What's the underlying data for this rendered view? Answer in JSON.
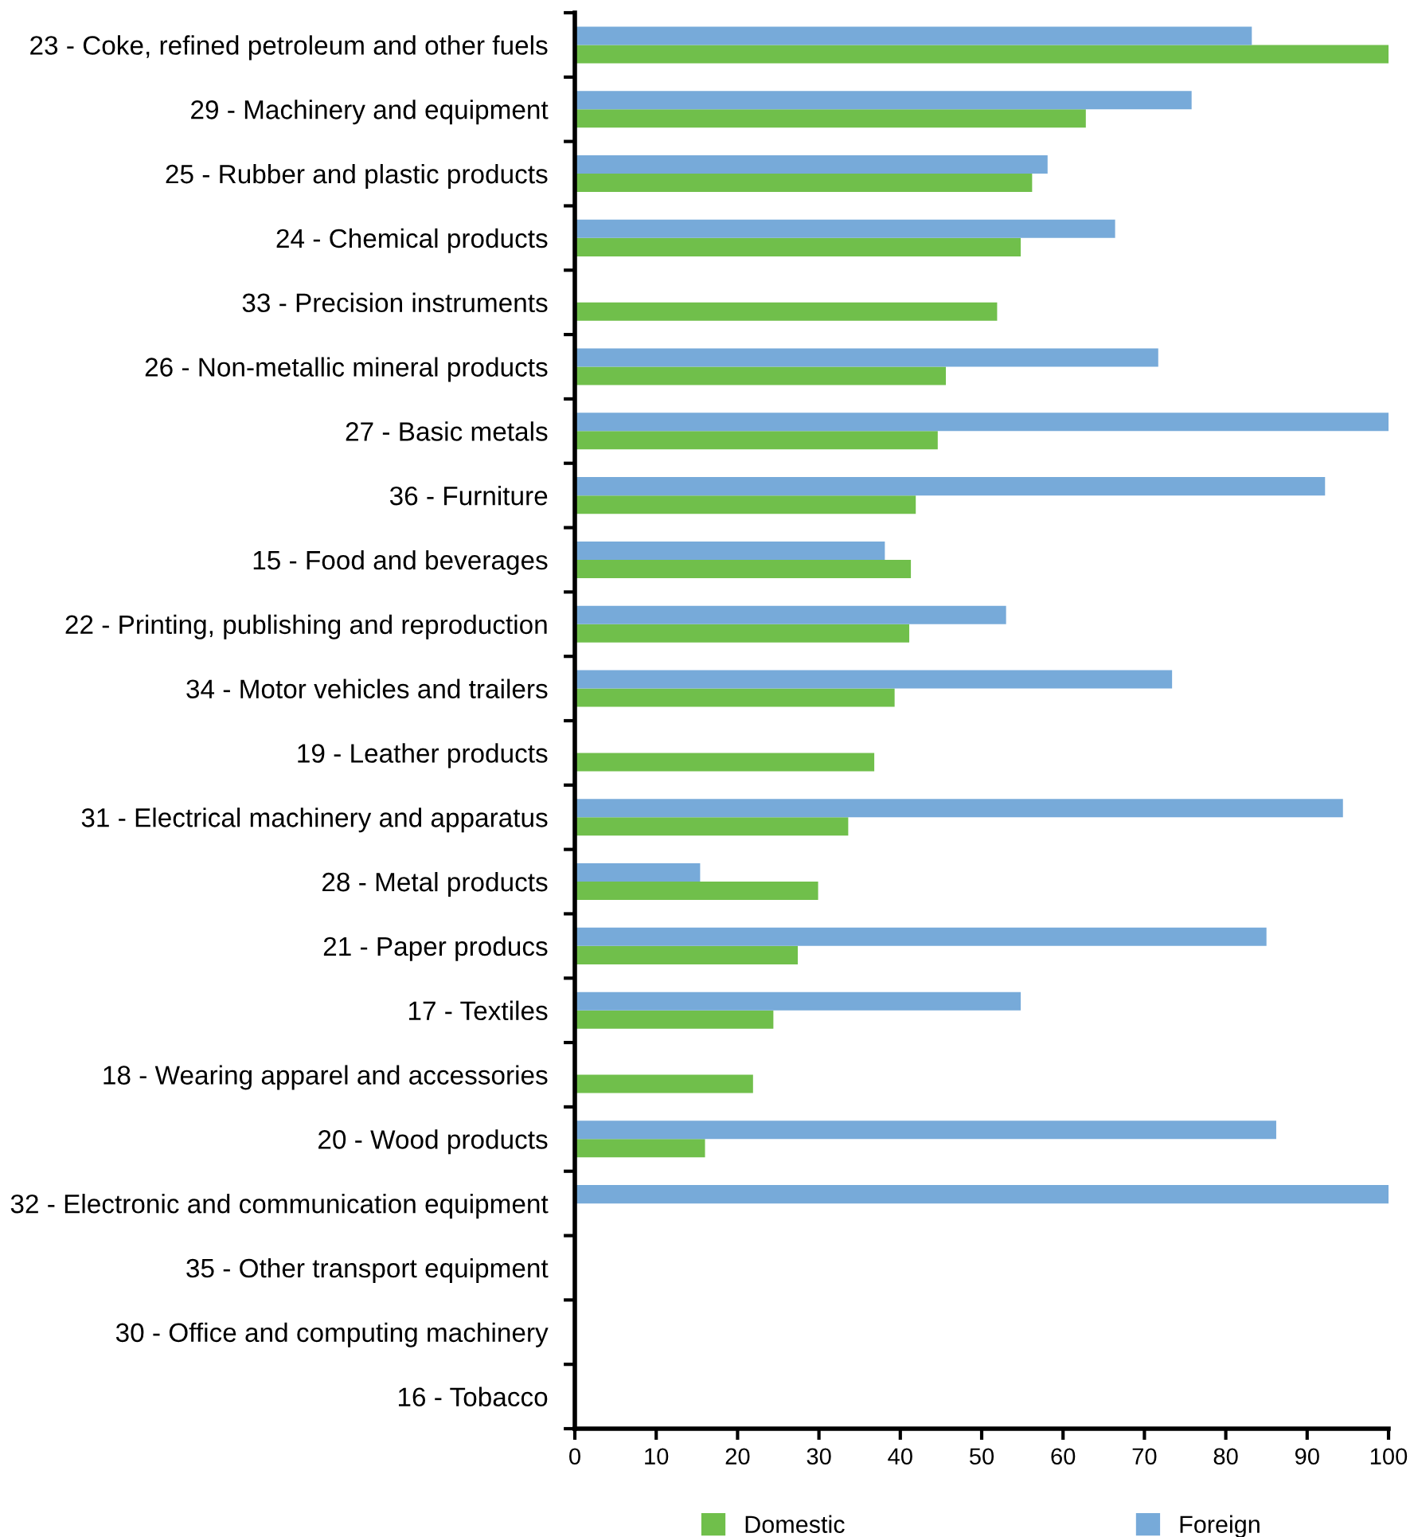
{
  "chart_data": {
    "type": "bar",
    "orientation": "horizontal",
    "categories": [
      "23 - Coke, refined petroleum and other fuels",
      "29 - Machinery and equipment",
      "25 - Rubber and plastic products",
      "24 - Chemical products",
      "33 - Precision instruments",
      "26 - Non-metallic mineral products",
      "27 - Basic metals",
      "36 - Furniture",
      "15 - Food and beverages",
      "22 - Printing, publishing and reproduction",
      "34 - Motor vehicles and trailers",
      "19 - Leather products",
      "31 - Electrical machinery and apparatus",
      "28 - Metal products",
      "21 - Paper producs",
      "17 - Textiles",
      "18 - Wearing apparel and accessories",
      "20 - Wood products",
      "32 - Electronic and communication equipment",
      "35 - Other transport equipment",
      "30 - Office and computing machinery",
      "16 - Tobacco"
    ],
    "series": [
      {
        "name": "Domestic",
        "color": "#70bf4b",
        "values": [
          100,
          62.8,
          56.2,
          54.8,
          51.9,
          45.6,
          44.6,
          41.9,
          41.3,
          41.1,
          39.3,
          36.8,
          33.6,
          29.9,
          27.4,
          24.4,
          21.9,
          16.0,
          null,
          null,
          null,
          null
        ]
      },
      {
        "name": "Foreign",
        "color": "#77aad9",
        "values": [
          83.2,
          75.8,
          58.1,
          66.4,
          null,
          71.7,
          100,
          92.2,
          38.1,
          53.0,
          73.4,
          null,
          94.4,
          15.4,
          85.0,
          54.8,
          null,
          86.2,
          100,
          null,
          null,
          null
        ]
      }
    ],
    "xlim": [
      0,
      100
    ],
    "xticks": [
      0,
      10,
      20,
      30,
      40,
      50,
      60,
      70,
      80,
      90,
      100
    ],
    "grid": false,
    "legend": "bottom"
  }
}
